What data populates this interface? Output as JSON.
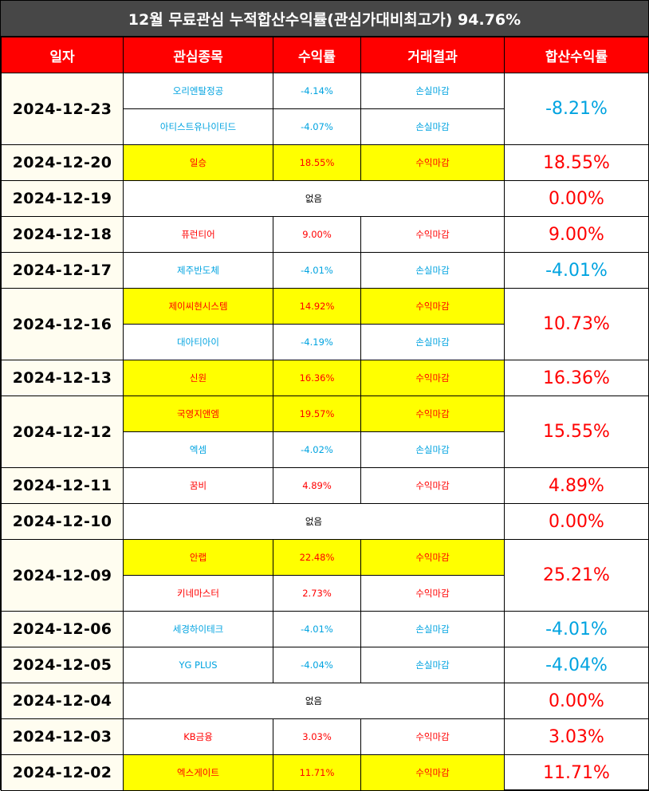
{
  "title": "12월 무료관심 누적합산수익률(관심가대비최고가) 94.76%",
  "headers": [
    "일자",
    "관심종목",
    "수익률",
    "거래결과",
    "합산수익률"
  ],
  "colors": {
    "profit": "#ff0000",
    "loss": "#00a3e0",
    "highlight": "#ffff00",
    "header_bg": "#ff0000",
    "title_bg": "#474747"
  },
  "days": [
    {
      "date": "2024-12-23",
      "total": "-8.21%",
      "total_type": "loss",
      "stocks": [
        {
          "name": "오리엔탈정공",
          "rate": "-4.14%",
          "result": "손실마감",
          "type": "loss",
          "highlight": false
        },
        {
          "name": "아티스트유나이티드",
          "rate": "-4.07%",
          "result": "손실마감",
          "type": "loss",
          "highlight": false
        }
      ]
    },
    {
      "date": "2024-12-20",
      "total": "18.55%",
      "total_type": "profit",
      "stocks": [
        {
          "name": "일승",
          "rate": "18.55%",
          "result": "수익마감",
          "type": "profit",
          "highlight": true
        }
      ]
    },
    {
      "date": "2024-12-19",
      "total": "0.00%",
      "total_type": "profit",
      "none": "없음",
      "stocks": []
    },
    {
      "date": "2024-12-18",
      "total": "9.00%",
      "total_type": "profit",
      "stocks": [
        {
          "name": "퓨런티어",
          "rate": "9.00%",
          "result": "수익마감",
          "type": "profit",
          "highlight": false
        }
      ]
    },
    {
      "date": "2024-12-17",
      "total": "-4.01%",
      "total_type": "loss",
      "stocks": [
        {
          "name": "제주반도체",
          "rate": "-4.01%",
          "result": "손실마감",
          "type": "loss",
          "highlight": false
        }
      ]
    },
    {
      "date": "2024-12-16",
      "total": "10.73%",
      "total_type": "profit",
      "stocks": [
        {
          "name": "제이씨현시스템",
          "rate": "14.92%",
          "result": "수익마감",
          "type": "profit",
          "highlight": true
        },
        {
          "name": "대아티아이",
          "rate": "-4.19%",
          "result": "손실마감",
          "type": "loss",
          "highlight": false
        }
      ]
    },
    {
      "date": "2024-12-13",
      "total": "16.36%",
      "total_type": "profit",
      "stocks": [
        {
          "name": "신원",
          "rate": "16.36%",
          "result": "수익마감",
          "type": "profit",
          "highlight": true
        }
      ]
    },
    {
      "date": "2024-12-12",
      "total": "15.55%",
      "total_type": "profit",
      "stocks": [
        {
          "name": "국영지앤엠",
          "rate": "19.57%",
          "result": "수익마감",
          "type": "profit",
          "highlight": true
        },
        {
          "name": "엑셈",
          "rate": "-4.02%",
          "result": "손실마감",
          "type": "loss",
          "highlight": false
        }
      ]
    },
    {
      "date": "2024-12-11",
      "total": "4.89%",
      "total_type": "profit",
      "stocks": [
        {
          "name": "꿈비",
          "rate": "4.89%",
          "result": "수익마감",
          "type": "profit",
          "highlight": false
        }
      ]
    },
    {
      "date": "2024-12-10",
      "total": "0.00%",
      "total_type": "profit",
      "none": "없음",
      "stocks": []
    },
    {
      "date": "2024-12-09",
      "total": "25.21%",
      "total_type": "profit",
      "stocks": [
        {
          "name": "안랩",
          "rate": "22.48%",
          "result": "수익마감",
          "type": "profit",
          "highlight": true
        },
        {
          "name": "키네마스터",
          "rate": "2.73%",
          "result": "수익마감",
          "type": "profit",
          "highlight": false
        }
      ]
    },
    {
      "date": "2024-12-06",
      "total": "-4.01%",
      "total_type": "loss",
      "stocks": [
        {
          "name": "세경하이테크",
          "rate": "-4.01%",
          "result": "손실마감",
          "type": "loss",
          "highlight": false
        }
      ]
    },
    {
      "date": "2024-12-05",
      "total": "-4.04%",
      "total_type": "loss",
      "stocks": [
        {
          "name": "YG PLUS",
          "rate": "-4.04%",
          "result": "손실마감",
          "type": "loss",
          "highlight": false
        }
      ]
    },
    {
      "date": "2024-12-04",
      "total": "0.00%",
      "total_type": "profit",
      "none": "없음",
      "stocks": []
    },
    {
      "date": "2024-12-03",
      "total": "3.03%",
      "total_type": "profit",
      "stocks": [
        {
          "name": "KB금융",
          "rate": "3.03%",
          "result": "수익마감",
          "type": "profit",
          "highlight": false
        }
      ]
    },
    {
      "date": "2024-12-02",
      "total": "11.71%",
      "total_type": "profit",
      "stocks": [
        {
          "name": "엑스게이트",
          "rate": "11.71%",
          "result": "수익마감",
          "type": "profit",
          "highlight": true
        }
      ]
    }
  ]
}
